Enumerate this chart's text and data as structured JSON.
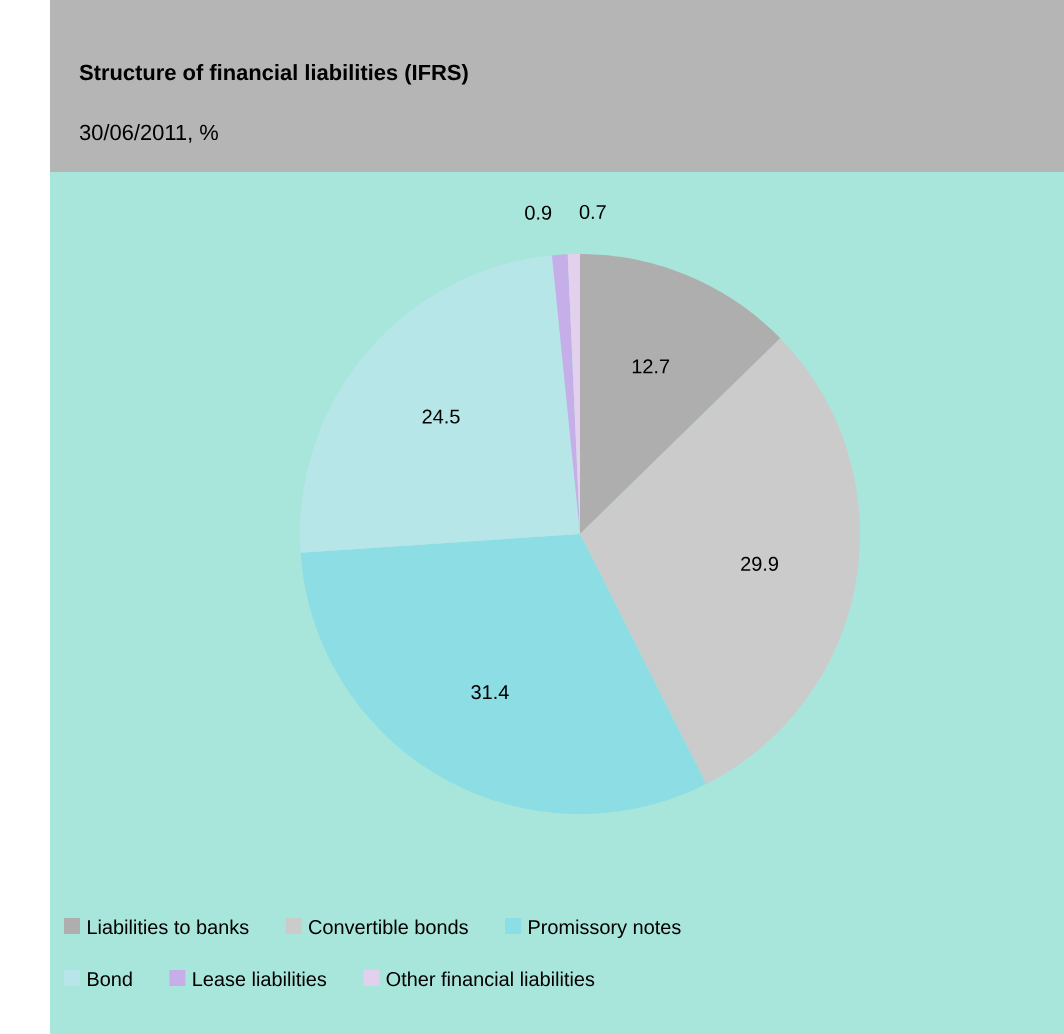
{
  "chart_data": {
    "type": "pie",
    "title": "Structure of financial liabilities (IFRS)",
    "subtitle": "30/06/2011, %",
    "categories": [
      "Liabilities to banks",
      "Convertible bonds",
      "Promissory notes",
      "Bond",
      "Lease liabilities",
      "Other financial liabilities"
    ],
    "values": [
      12.7,
      29.9,
      31.4,
      24.5,
      0.9,
      0.7
    ],
    "colors": [
      "#aeaeae",
      "#cbcbcb",
      "#8cdee4",
      "#b7e6e8",
      "#c6aee8",
      "#e2d0ec"
    ],
    "data_labels": true,
    "legend": "bottom"
  }
}
